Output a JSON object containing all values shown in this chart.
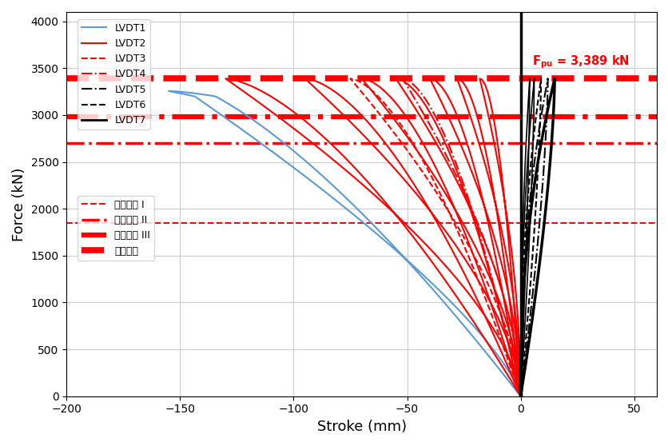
{
  "title": "",
  "xlabel": "Stroke (mm)",
  "ylabel": "Force (kN)",
  "xlim": [
    -200,
    60
  ],
  "ylim": [
    0,
    4100
  ],
  "xticks": [
    -200,
    -150,
    -100,
    -50,
    0,
    50
  ],
  "yticks": [
    0,
    500,
    1000,
    1500,
    2000,
    2500,
    3000,
    3500,
    4000
  ],
  "fpu_value": 3389,
  "annotation_text": "F_pu = 3,389 kN",
  "horizontal_lines": {
    "I": {
      "y": 1850,
      "color": "#FF0000",
      "linestyle": "--",
      "linewidth": 1.5
    },
    "II": {
      "y": 2700,
      "color": "#FF0000",
      "linestyle": "-.",
      "linewidth": 2.5
    },
    "III": {
      "y": 2980,
      "color": "#FF0000",
      "linestyle": "-.",
      "linewidth": 4.5
    },
    "ult": {
      "y": 3389,
      "color": "#FF0000",
      "linestyle": "--",
      "linewidth": 5.5
    }
  },
  "background_color": "#ffffff",
  "grid_color": "#cccccc",
  "lvdt_colors": {
    "LVDT1": "#5B9BD5",
    "LVDT2": "#FF0000",
    "LVDT3": "#FF0000",
    "LVDT4": "#FF0000",
    "LVDT5": "#000000",
    "LVDT6": "#000000",
    "LVDT7": "#000000"
  },
  "lvdt_styles": {
    "LVDT1": "-",
    "LVDT2": "-",
    "LVDT3": "--",
    "LVDT4": "-.",
    "LVDT5": "-.",
    "LVDT6": "--",
    "LVDT7": "-"
  },
  "lvdt_linewidths": {
    "LVDT1": 1.5,
    "LVDT2": 1.5,
    "LVDT3": 1.5,
    "LVDT4": 1.5,
    "LVDT5": 1.5,
    "LVDT6": 1.5,
    "LVDT7": 2.5
  },
  "legend1_labels": [
    "LVDT1",
    "LVDT2",
    "LVDT3",
    "LVDT4",
    "LVDT5",
    "LVDT6",
    "LVDT7"
  ],
  "legend2_labels": [
    "사용하중 I",
    "사용하중 II",
    "사용하중 III",
    "극한하중"
  ]
}
